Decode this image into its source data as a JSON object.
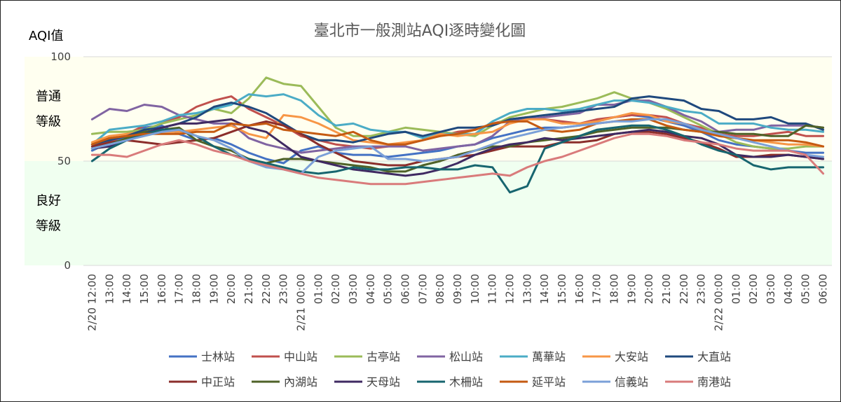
{
  "chart_data": {
    "type": "line",
    "title": "臺北市一般測站AQI逐時變化圖",
    "ylabel": "AQI值",
    "ylim": [
      0,
      100
    ],
    "yticks": [
      "0",
      "50",
      "100"
    ],
    "bands": [
      {
        "label_lines": [
          "普通",
          "等級"
        ],
        "from": 50,
        "to": 100,
        "color": "#fffff0"
      },
      {
        "label_lines": [
          "良好",
          "等級"
        ],
        "from": 0,
        "to": 50,
        "color": "#f0fff0"
      }
    ],
    "categories": [
      "2/20 12:00",
      "13:00",
      "14:00",
      "15:00",
      "16:00",
      "17:00",
      "18:00",
      "19:00",
      "20:00",
      "21:00",
      "22:00",
      "23:00",
      "2/21 00:00",
      "01:00",
      "02:00",
      "03:00",
      "04:00",
      "05:00",
      "06:00",
      "07:00",
      "08:00",
      "09:00",
      "10:00",
      "11:00",
      "12:00",
      "13:00",
      "14:00",
      "15:00",
      "16:00",
      "17:00",
      "18:00",
      "19:00",
      "20:00",
      "21:00",
      "22:00",
      "23:00",
      "2/22 00:00",
      "01:00",
      "02:00",
      "03:00",
      "04:00",
      "05:00",
      "06:00"
    ],
    "legend_position": "bottom",
    "series": [
      {
        "name": "士林站",
        "color": "#4472c4",
        "values": [
          55,
          59,
          62,
          66,
          67,
          63,
          60,
          61,
          58,
          54,
          51,
          49,
          55,
          57,
          54,
          53,
          53,
          52,
          53,
          54,
          55,
          57,
          58,
          61,
          63,
          65,
          66,
          66,
          67,
          69,
          71,
          72,
          71,
          69,
          67,
          64,
          60,
          58,
          57,
          56,
          55,
          54,
          54
        ]
      },
      {
        "name": "中山站",
        "color": "#c0504d",
        "values": [
          56,
          59,
          63,
          67,
          69,
          71,
          76,
          79,
          81,
          75,
          71,
          67,
          62,
          60,
          58,
          57,
          56,
          57,
          58,
          60,
          62,
          64,
          65,
          68,
          70,
          71,
          70,
          69,
          68,
          70,
          71,
          72,
          72,
          71,
          68,
          66,
          63,
          62,
          62,
          63,
          64,
          62,
          62
        ]
      },
      {
        "name": "古亭站",
        "color": "#9bbb59",
        "values": [
          63,
          64,
          64,
          65,
          68,
          70,
          72,
          75,
          73,
          80,
          90,
          87,
          86,
          76,
          66,
          62,
          62,
          64,
          66,
          65,
          64,
          63,
          62,
          67,
          71,
          73,
          75,
          76,
          78,
          80,
          83,
          80,
          78,
          75,
          71,
          67,
          63,
          59,
          57,
          56,
          56,
          57,
          57
        ]
      },
      {
        "name": "松山站",
        "color": "#8064a2",
        "values": [
          70,
          75,
          74,
          77,
          76,
          72,
          70,
          68,
          68,
          61,
          58,
          56,
          54,
          55,
          56,
          57,
          57,
          57,
          57,
          55,
          56,
          57,
          58,
          62,
          69,
          70,
          71,
          72,
          73,
          77,
          77,
          79,
          79,
          76,
          72,
          69,
          64,
          65,
          65,
          67,
          67,
          67,
          66
        ]
      },
      {
        "name": "萬華站",
        "color": "#4bacc6",
        "values": [
          58,
          65,
          66,
          67,
          69,
          72,
          73,
          75,
          77,
          82,
          81,
          82,
          79,
          72,
          67,
          68,
          65,
          64,
          64,
          61,
          63,
          63,
          63,
          69,
          73,
          75,
          75,
          74,
          75,
          77,
          79,
          79,
          78,
          76,
          74,
          73,
          68,
          68,
          68,
          66,
          65,
          65,
          64
        ]
      },
      {
        "name": "大安站",
        "color": "#f79646",
        "values": [
          59,
          62,
          63,
          64,
          64,
          64,
          65,
          66,
          67,
          63,
          61,
          72,
          71,
          68,
          64,
          60,
          59,
          58,
          59,
          60,
          63,
          62,
          63,
          64,
          68,
          70,
          70,
          68,
          68,
          69,
          71,
          73,
          72,
          69,
          68,
          65,
          62,
          61,
          60,
          59,
          58,
          58,
          57
        ]
      },
      {
        "name": "大直站",
        "color": "#1f497d",
        "values": [
          58,
          60,
          62,
          65,
          66,
          68,
          71,
          76,
          78,
          76,
          73,
          68,
          63,
          60,
          60,
          59,
          61,
          63,
          64,
          62,
          64,
          66,
          66,
          67,
          70,
          71,
          72,
          73,
          74,
          75,
          76,
          80,
          81,
          80,
          79,
          75,
          74,
          70,
          70,
          71,
          68,
          68,
          65
        ]
      },
      {
        "name": "中正站",
        "color": "#8b2e2b",
        "values": [
          57,
          59,
          60,
          59,
          58,
          59,
          60,
          61,
          64,
          67,
          69,
          67,
          63,
          58,
          54,
          50,
          49,
          48,
          48,
          50,
          51,
          52,
          53,
          55,
          57,
          57,
          57,
          59,
          59,
          60,
          63,
          64,
          64,
          63,
          61,
          59,
          56,
          52,
          52,
          53,
          53,
          52,
          51
        ]
      },
      {
        "name": "內湖站",
        "color": "#4f6228",
        "values": [
          56,
          58,
          61,
          64,
          65,
          66,
          60,
          57,
          55,
          51,
          49,
          51,
          51,
          50,
          49,
          48,
          47,
          45,
          45,
          48,
          50,
          53,
          55,
          57,
          57,
          59,
          60,
          61,
          62,
          64,
          65,
          66,
          66,
          66,
          65,
          64,
          64,
          63,
          63,
          62,
          62,
          67,
          66
        ]
      },
      {
        "name": "天母站",
        "color": "#3f2a62",
        "values": [
          56,
          57,
          60,
          63,
          66,
          68,
          68,
          69,
          70,
          66,
          64,
          58,
          52,
          50,
          48,
          46,
          45,
          44,
          43,
          44,
          46,
          49,
          53,
          56,
          58,
          59,
          61,
          60,
          61,
          62,
          63,
          64,
          65,
          64,
          62,
          61,
          58,
          53,
          52,
          52,
          53,
          52,
          51
        ]
      },
      {
        "name": "木柵站",
        "color": "#17656f",
        "values": [
          50,
          56,
          60,
          63,
          65,
          65,
          62,
          57,
          53,
          51,
          49,
          47,
          45,
          44,
          45,
          47,
          46,
          46,
          47,
          47,
          46,
          46,
          48,
          47,
          35,
          38,
          56,
          59,
          62,
          65,
          66,
          67,
          67,
          65,
          62,
          58,
          55,
          53,
          48,
          46,
          47,
          47,
          47
        ]
      },
      {
        "name": "延平站",
        "color": "#c55a11",
        "values": [
          58,
          61,
          62,
          63,
          63,
          63,
          64,
          64,
          68,
          67,
          68,
          65,
          64,
          63,
          62,
          64,
          60,
          58,
          58,
          60,
          62,
          63,
          65,
          68,
          69,
          69,
          65,
          64,
          65,
          68,
          69,
          70,
          70,
          67,
          65,
          64,
          62,
          61,
          60,
          60,
          60,
          59,
          57
        ]
      },
      {
        "name": "信義站",
        "color": "#7ba0d8",
        "values": [
          56,
          58,
          60,
          62,
          64,
          65,
          62,
          60,
          56,
          50,
          47,
          46,
          44,
          52,
          55,
          56,
          57,
          51,
          51,
          50,
          51,
          52,
          55,
          58,
          61,
          63,
          65,
          66,
          67,
          68,
          69,
          69,
          70,
          70,
          68,
          65,
          63,
          61,
          59,
          57,
          55,
          53,
          52
        ]
      },
      {
        "name": "南港站",
        "color": "#d97b7b",
        "values": [
          53,
          53,
          52,
          55,
          58,
          60,
          58,
          55,
          53,
          50,
          48,
          46,
          44,
          42,
          41,
          40,
          39,
          39,
          39,
          40,
          41,
          42,
          43,
          44,
          43,
          47,
          50,
          52,
          55,
          58,
          61,
          63,
          63,
          62,
          60,
          59,
          58,
          56,
          55,
          55,
          55,
          53,
          44
        ]
      }
    ]
  }
}
